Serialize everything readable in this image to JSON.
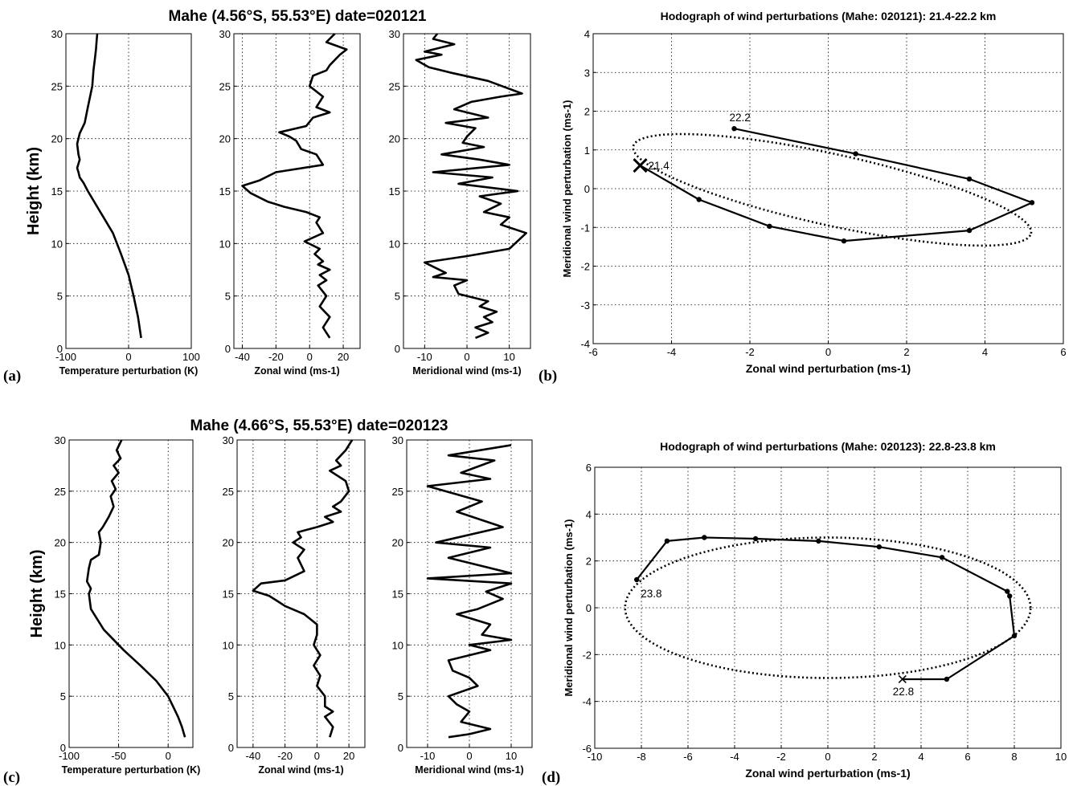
{
  "figure": {
    "panel_labels": [
      "(a)",
      "(b)",
      "(c)",
      "(d)"
    ],
    "row_titles": [
      "Mahe (4.56°S, 55.53°E)  date=020121",
      "Mahe (4.66°S, 55.53°E)  date=020123"
    ]
  },
  "chart_data": [
    {
      "id": "a-temp",
      "type": "line",
      "row": 0,
      "xlabel": "Temperature perturbation (K)",
      "ylabel": "Height (km)",
      "xlim": [
        -100,
        100
      ],
      "ylim": [
        0,
        30
      ],
      "xticks": [
        -100,
        0,
        100
      ],
      "yticks": [
        0,
        5,
        10,
        15,
        20,
        25,
        30
      ],
      "grid": true,
      "x": [
        20,
        15,
        8,
        0,
        -12,
        -25,
        -40,
        -55,
        -65,
        -72,
        -78,
        -80,
        -82,
        -78,
        -80,
        -82,
        -78,
        -70,
        -65,
        -58,
        -56,
        -54,
        -52,
        -51,
        -50
      ],
      "y": [
        1,
        3,
        5,
        7,
        9,
        11,
        12.5,
        14,
        15,
        15.8,
        16.3,
        16.8,
        17.2,
        18,
        18.5,
        19.5,
        20.5,
        21.5,
        23,
        25,
        26.5,
        27.5,
        28.5,
        29.3,
        30
      ]
    },
    {
      "id": "a-zonal",
      "type": "line",
      "row": 0,
      "xlabel": "Zonal wind (ms-1)",
      "ylabel": "",
      "xlim": [
        -45,
        30
      ],
      "ylim": [
        0,
        30
      ],
      "xticks": [
        -40,
        -20,
        0,
        20
      ],
      "yticks": [
        0,
        5,
        10,
        15,
        20,
        25,
        30
      ],
      "grid": true,
      "x": [
        12,
        8,
        12,
        6,
        10,
        5,
        10,
        6,
        12,
        5,
        8,
        3,
        6,
        -3,
        8,
        4,
        6,
        -2,
        -15,
        -25,
        -35,
        -40,
        -30,
        -20,
        8,
        4,
        -5,
        -8,
        -12,
        -18,
        -2,
        2,
        12,
        4,
        8,
        0,
        2,
        10,
        12,
        18,
        22,
        10,
        15
      ],
      "y": [
        1,
        2,
        3,
        4,
        5,
        6,
        6.5,
        7,
        7.5,
        8,
        8.3,
        9,
        9.5,
        10.2,
        11,
        12,
        12.5,
        13,
        13.5,
        14,
        14.8,
        15.5,
        16,
        16.8,
        17.5,
        18.5,
        19,
        19.8,
        20.2,
        20.6,
        21.2,
        22,
        22.5,
        23,
        24,
        25,
        26,
        26.5,
        27,
        28,
        28.5,
        29.2,
        30
      ]
    },
    {
      "id": "a-meridional",
      "type": "line",
      "row": 0,
      "xlabel": "Meridional wind (ms-1)",
      "ylabel": "",
      "xlim": [
        -15,
        15
      ],
      "ylim": [
        0,
        30
      ],
      "xticks": [
        -10,
        0,
        10
      ],
      "yticks": [
        0,
        5,
        10,
        15,
        20,
        25,
        30
      ],
      "grid": true,
      "x": [
        2,
        5,
        2,
        6,
        4,
        7,
        3,
        5,
        -2,
        -3,
        0,
        -8,
        -5,
        -10,
        0,
        10,
        14,
        8,
        10,
        4,
        8,
        3,
        12,
        -2,
        6,
        -8,
        10,
        3,
        -6,
        4,
        -1,
        0,
        2,
        -5,
        5,
        -3,
        1,
        8,
        13,
        5,
        -4,
        -9,
        -12,
        -6,
        -10,
        -3,
        -8,
        -7
      ],
      "y": [
        1,
        1.5,
        2,
        2.5,
        3,
        3.5,
        4,
        4.5,
        5.2,
        6,
        6.5,
        6.8,
        7.2,
        8.2,
        8.8,
        9.5,
        11,
        11.8,
        12.5,
        13,
        13.8,
        14.5,
        15,
        15.7,
        16.3,
        16.8,
        17.5,
        18,
        18.5,
        19.2,
        19.6,
        20.2,
        21,
        21.5,
        22,
        22.8,
        23.5,
        24,
        24.3,
        25.5,
        26.3,
        26.8,
        27.5,
        28,
        28.3,
        29,
        29.5,
        30
      ]
    },
    {
      "id": "b-hodograph",
      "type": "line",
      "row": 0,
      "title": "Hodograph of wind perturbations (Mahe: 020121): 21.4-22.2 km",
      "xlabel": "Zonal wind perturbation (ms-1)",
      "ylabel": "Meridional wind perturbation (ms-1)",
      "xlim": [
        -6,
        6
      ],
      "ylim": [
        -4,
        4
      ],
      "xticks": [
        -6,
        -4,
        -2,
        0,
        2,
        4,
        6
      ],
      "yticks": [
        -4,
        -3,
        -2,
        -1,
        0,
        1,
        2,
        3,
        4
      ],
      "grid": true,
      "x": [
        -4.8,
        -3.3,
        -1.5,
        0.4,
        3.6,
        5.2,
        3.6,
        0.7,
        -2.4
      ],
      "y": [
        0.6,
        -0.28,
        -0.97,
        -1.35,
        -1.08,
        -0.36,
        0.25,
        0.9,
        1.55
      ],
      "fit_ellipse": {
        "center": [
          0.1,
          -0.03
        ],
        "semi_major": 5.2,
        "semi_minor": 0.92,
        "angle_deg": -12.5
      },
      "annotations": [
        {
          "text": "22.2",
          "x": -2.4,
          "y": 1.55
        },
        {
          "text": "21.4",
          "x": -4.8,
          "y": 0.6
        }
      ]
    },
    {
      "id": "c-temp",
      "type": "line",
      "row": 1,
      "xlabel": "Temperature perturbation (K)",
      "ylabel": "Height (km)",
      "xlim": [
        -100,
        25
      ],
      "ylim": [
        0,
        30
      ],
      "xticks": [
        -100,
        -50,
        0
      ],
      "yticks": [
        0,
        5,
        10,
        15,
        20,
        25,
        30
      ],
      "grid": true,
      "x": [
        17,
        14,
        10,
        0,
        -12,
        -28,
        -45,
        -65,
        -78,
        -80,
        -78,
        -82,
        -80,
        -78,
        -70,
        -68,
        -70,
        -66,
        -60,
        -55,
        -58,
        -53,
        -57,
        -50,
        -55,
        -48,
        -52,
        -47
      ],
      "y": [
        1,
        2,
        3,
        5,
        6.5,
        8,
        9.5,
        11.5,
        13.5,
        15,
        15.5,
        16.2,
        17.5,
        18.3,
        18.8,
        20,
        21,
        21.5,
        22.5,
        23.5,
        24.5,
        25.2,
        26,
        26.8,
        27.5,
        28.2,
        29,
        30
      ]
    },
    {
      "id": "c-zonal",
      "type": "line",
      "row": 1,
      "xlabel": "Zonal wind (ms-1)",
      "ylabel": "",
      "xlim": [
        -50,
        30
      ],
      "ylim": [
        0,
        30
      ],
      "xticks": [
        -40,
        -20,
        0,
        20
      ],
      "yticks": [
        0,
        5,
        10,
        15,
        20,
        25,
        30
      ],
      "grid": true,
      "x": [
        8,
        10,
        5,
        10,
        5,
        5,
        0,
        2,
        -2,
        2,
        -2,
        0,
        0,
        -8,
        -20,
        -25,
        -30,
        -40,
        -35,
        -20,
        -8,
        -12,
        -8,
        -15,
        -10,
        -12,
        0,
        10,
        5,
        15,
        10,
        15,
        20,
        18,
        8,
        15,
        12,
        18,
        22
      ],
      "y": [
        1,
        2,
        3,
        3.5,
        4,
        5,
        6,
        7,
        8,
        9,
        10,
        11,
        12,
        13,
        13.8,
        14.3,
        14.8,
        15.3,
        16,
        16.3,
        17.2,
        18.5,
        19.3,
        20,
        20.5,
        21,
        21.5,
        22,
        22.5,
        23,
        23.5,
        24,
        25,
        26,
        27,
        27.5,
        28,
        29,
        30
      ]
    },
    {
      "id": "c-meridional",
      "type": "line",
      "row": 1,
      "xlabel": "Meridional wind (ms-1)",
      "ylabel": "",
      "xlim": [
        -15,
        15
      ],
      "ylim": [
        0,
        30
      ],
      "xticks": [
        -10,
        0,
        10
      ],
      "yticks": [
        0,
        5,
        10,
        15,
        20,
        25,
        30
      ],
      "grid": true,
      "x": [
        -5,
        0,
        5,
        -2,
        0,
        -3,
        -5,
        2,
        0,
        -4,
        -5,
        5,
        0,
        10,
        3,
        5,
        -3,
        2,
        8,
        4,
        10,
        -10,
        10,
        -5,
        5,
        -8,
        8,
        -3,
        3,
        -10,
        5,
        -2,
        6,
        -5,
        10
      ],
      "y": [
        1,
        1.3,
        1.8,
        2.5,
        3.5,
        4.2,
        5,
        6,
        6.8,
        7.5,
        8.5,
        9.5,
        10,
        10.5,
        11,
        12,
        13,
        13.5,
        14.5,
        15.2,
        16,
        16.5,
        17,
        18.5,
        19.5,
        20,
        21.5,
        23,
        24,
        25.5,
        26.2,
        26.8,
        28,
        28.5,
        29.5
      ]
    },
    {
      "id": "d-hodograph",
      "type": "line",
      "row": 1,
      "title": "Hodograph of wind perturbations (Mahe: 020123): 22.8-23.8 km",
      "xlabel": "Zonal wind perturbation (ms-1)",
      "ylabel": "Meridional wind perturbation (ms-1)",
      "xlim": [
        -10,
        10
      ],
      "ylim": [
        -6,
        6
      ],
      "xticks": [
        -10,
        -8,
        -6,
        -4,
        -2,
        0,
        2,
        4,
        6,
        8,
        10
      ],
      "yticks": [
        -6,
        -4,
        -2,
        0,
        2,
        4,
        6
      ],
      "grid": true,
      "x": [
        3.2,
        5.1,
        8.0,
        7.8,
        7.7,
        4.9,
        2.2,
        -0.4,
        -3.1,
        -5.3,
        -6.9,
        -8.2
      ],
      "y": [
        -3.05,
        -3.05,
        -1.2,
        0.5,
        0.7,
        2.15,
        2.6,
        2.85,
        2.95,
        3.0,
        2.85,
        1.2
      ],
      "fit_ellipse": {
        "center": [
          0,
          0
        ],
        "semi_major": 8.7,
        "semi_minor": 3.0,
        "angle_deg": 0
      },
      "annotations": [
        {
          "text": "23.8",
          "x": -8.2,
          "y": 1.2
        },
        {
          "text": "22.8",
          "x": 3.2,
          "y": -3.05
        }
      ]
    }
  ]
}
